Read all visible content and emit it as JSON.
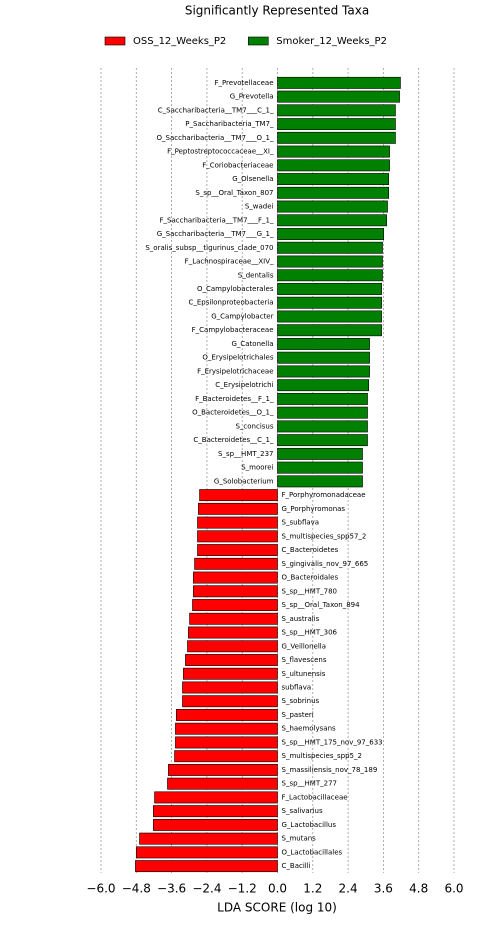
{
  "chart_data": {
    "type": "bar",
    "orientation": "horizontal",
    "title": "Significantly Represented Taxa",
    "xlabel": "LDA SCORE (log 10)",
    "categories": [
      "F_Prevotellaceae",
      "G_Prevotella",
      "C_Saccharibacteria__TM7___C_1_",
      "P_Saccharibacteria_TM7_",
      "O_Saccharibacteria__TM7___O_1_",
      "F_Peptostreptococcaceae__XI_",
      "F_Coriobacteriaceae",
      "G_Olsenella",
      "S_sp__Oral_Taxon_807",
      "S_wadei",
      "F_Saccharibacteria__TM7___F_1_",
      "G_Saccharibacteria__TM7___G_1_",
      "S_oralis_subsp__tigurinus_clade_070",
      "F_Lachnospiraceae__XIV_",
      "S_dentalis",
      "O_Campylobacterales",
      "C_Epsilonproteobacteria",
      "G_Campylobacter",
      "F_Campylobacteraceae",
      "G_Catonella",
      "O_Erysipelotrichales",
      "F_Erysipelotrichaceae",
      "C_Erysipelotrichi",
      "F_Bacteroidetes__F_1_",
      "O_Bacteroidetes__O_1_",
      "S_concisus",
      "C_Bacteroidetes__C_1_",
      "S_sp__HMT_237",
      "S_moorei",
      "G_Solobacterium",
      "F_Porphyromonadaceae",
      "G_Porphyromonas",
      "S_subflava",
      "S_multispecies_spp57_2",
      "C_Bacteroidetes",
      "S_gingivalis_nov_97_665",
      "O_Bacteroidales",
      "S_sp__HMT_780",
      "S_sp__Oral_Taxon_894",
      "S_australis",
      "S_sp__HMT_306",
      "G_Veillonella",
      "S_flavescens",
      "S_ultunensis",
      "subflava",
      "S_sobrinus",
      "S_pasteri",
      "S_haemolysans",
      "S_sp__HMT_175_nov_97_633",
      "S_multispecies_spp5_2",
      "S_massiliensis_nov_78_189",
      "S_sp__HMT_277",
      "F_Lactobacillaceae",
      "S_salivarius",
      "G_Lactobacillus",
      "S_mutans",
      "O_Lactobacillales",
      "C_Bacilli"
    ],
    "series": [
      {
        "name": "OSS_12_Weeks_P2",
        "color": "#ff0000",
        "values": [
          null,
          null,
          null,
          null,
          null,
          null,
          null,
          null,
          null,
          null,
          null,
          null,
          null,
          null,
          null,
          null,
          null,
          null,
          null,
          null,
          null,
          null,
          null,
          null,
          null,
          null,
          null,
          null,
          null,
          null,
          -2.65,
          -2.69,
          -2.72,
          -2.72,
          -2.72,
          -2.82,
          -2.86,
          -2.86,
          -2.89,
          -2.99,
          -3.03,
          -3.06,
          -3.13,
          -3.2,
          -3.23,
          -3.23,
          -3.44,
          -3.47,
          -3.47,
          -3.5,
          -3.71,
          -3.74,
          -4.18,
          -4.22,
          -4.22,
          -4.69,
          -4.8,
          -4.83
        ]
      },
      {
        "name": "Smoker_12_Weeks_P2",
        "color": "#008000",
        "values": [
          4.18,
          4.15,
          4.01,
          4.01,
          4.01,
          3.81,
          3.81,
          3.78,
          3.78,
          3.74,
          3.71,
          3.61,
          3.57,
          3.57,
          3.57,
          3.54,
          3.54,
          3.54,
          3.54,
          3.13,
          3.13,
          3.13,
          3.1,
          3.06,
          3.06,
          3.06,
          3.06,
          2.89,
          2.89,
          2.89,
          null,
          null,
          null,
          null,
          null,
          null,
          null,
          null,
          null,
          null,
          null,
          null,
          null,
          null,
          null,
          null,
          null,
          null,
          null,
          null,
          null,
          null,
          null,
          null,
          null,
          null,
          null,
          null
        ]
      }
    ],
    "xlim": [
      -6,
      6
    ],
    "xticks": [
      {
        "value": -6,
        "label": "−6.0"
      },
      {
        "value": -4.8,
        "label": "−4.8"
      },
      {
        "value": -3.6,
        "label": "−3.6"
      },
      {
        "value": -2.4,
        "label": "−2.4"
      },
      {
        "value": -1.2,
        "label": "−1.2"
      },
      {
        "value": 0,
        "label": "0.0"
      },
      {
        "value": 1.2,
        "label": "1.2"
      },
      {
        "value": 2.4,
        "label": "2.4"
      },
      {
        "value": 3.6,
        "label": "3.6"
      },
      {
        "value": 4.8,
        "label": "4.8"
      },
      {
        "value": 6,
        "label": "6.0"
      }
    ],
    "grid": true
  }
}
